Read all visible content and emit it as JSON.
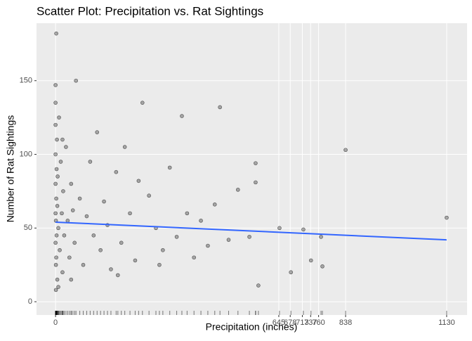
{
  "chart_data": {
    "type": "scatter",
    "title": "Scatter Plot: Precipitation vs. Rat Sightings",
    "x_label": "Precipitation (inches)",
    "y_label": "Number of Rat Sightings",
    "xlim": [
      -55,
      1189
    ],
    "ylim": [
      -9,
      189
    ],
    "xticks": [
      0,
      645,
      678,
      713,
      737,
      760,
      838,
      1130
    ],
    "yticks": [
      0,
      50,
      100,
      150
    ],
    "grid": true,
    "point_color": "#000000",
    "x": [
      0,
      0,
      0,
      0,
      0,
      0,
      0,
      1,
      1,
      1,
      2,
      2,
      2,
      3,
      3,
      4,
      5,
      5,
      6,
      8,
      10,
      12,
      15,
      18,
      20,
      22,
      25,
      30,
      35,
      40,
      45,
      50,
      55,
      59,
      70,
      80,
      90,
      100,
      110,
      120,
      130,
      140,
      150,
      160,
      175,
      190,
      200,
      215,
      230,
      251,
      270,
      290,
      310,
      330,
      350,
      365,
      380,
      400,
      420,
      440,
      460,
      475,
      500,
      527,
      560,
      578,
      578,
      586,
      647,
      680,
      716,
      738,
      767,
      771,
      838,
      1130,
      180,
      240,
      300,
      20,
      45,
      8
    ],
    "values": [
      147,
      135,
      120,
      100,
      80,
      60,
      40,
      25,
      8,
      55,
      182,
      70,
      30,
      90,
      45,
      110,
      65,
      15,
      85,
      50,
      125,
      35,
      95,
      60,
      20,
      75,
      45,
      105,
      55,
      30,
      80,
      62,
      40,
      150,
      70,
      25,
      58,
      95,
      45,
      115,
      35,
      68,
      52,
      22,
      88,
      40,
      105,
      60,
      28,
      135,
      72,
      50,
      35,
      91,
      44,
      126,
      60,
      30,
      55,
      38,
      66,
      132,
      42,
      76,
      44,
      81,
      94,
      11,
      50,
      20,
      49,
      28,
      44,
      24,
      103,
      57,
      18,
      82,
      25,
      110,
      15,
      10
    ],
    "trend": {
      "color": "#3366FF",
      "x": [
        0,
        1130
      ],
      "values": [
        54,
        42
      ]
    }
  }
}
